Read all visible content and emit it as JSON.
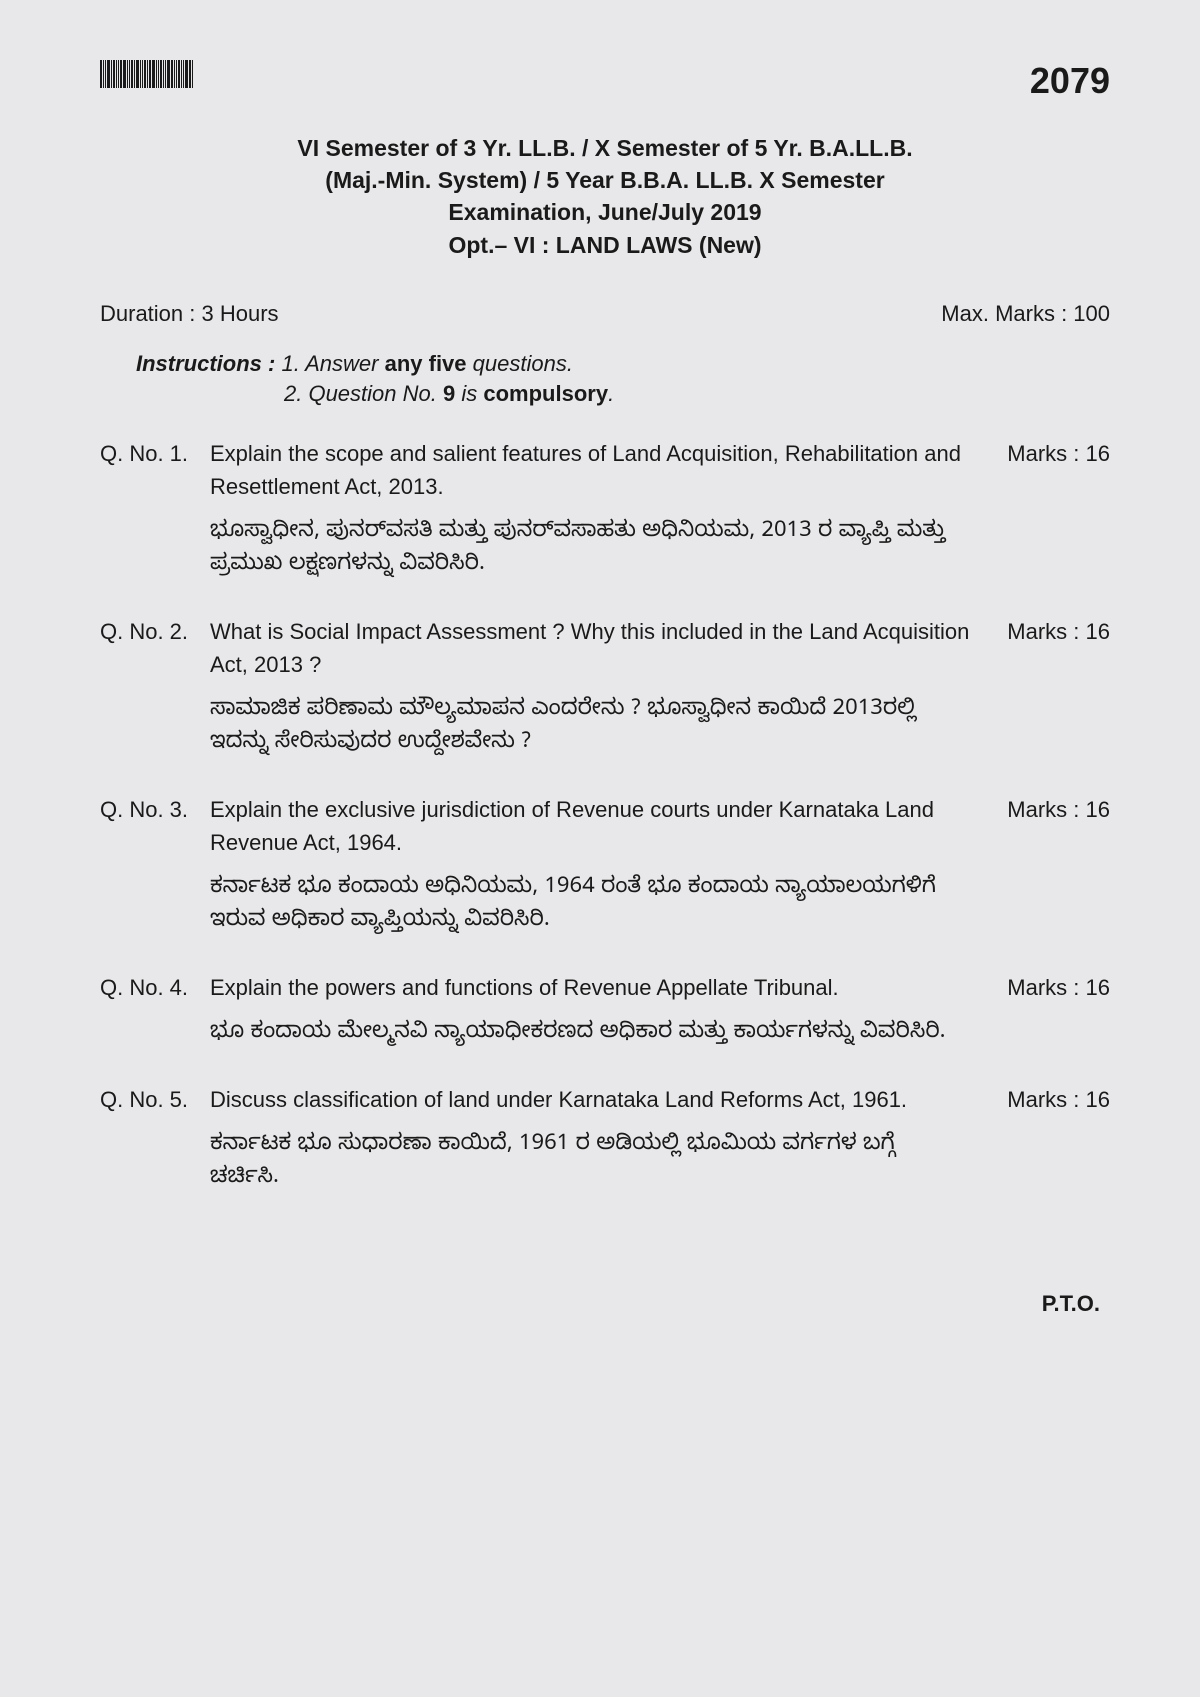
{
  "paper_code": "2079",
  "title": {
    "line1": "VI Semester of 3 Yr. LL.B. / X Semester of 5 Yr. B.A.LL.B.",
    "line2": "(Maj.-Min. System) / 5 Year B.B.A. LL.B. X Semester",
    "line3": "Examination, June/July 2019",
    "line4": "Opt.– VI : LAND LAWS (New)"
  },
  "duration_label": "Duration : 3 Hours",
  "max_marks_label": "Max. Marks : 100",
  "instructions": {
    "label": "Instructions :",
    "line1_prefix": "1. Answer ",
    "line1_bold": "any five",
    "line1_suffix": " questions.",
    "line2_prefix": "2. Question No. ",
    "line2_bold1": "9",
    "line2_mid": " is ",
    "line2_bold2": "compulsory",
    "line2_suffix": "."
  },
  "questions": [
    {
      "num": "Q. No. 1.",
      "en": "Explain the scope and salient features of Land Acquisition, Rehabilitation and Resettlement Act, 2013.",
      "kn": "ಭೂಸ್ವಾಧೀನ, ಪುನರ್‌ವಸತಿ ಮತ್ತು ಪುನರ್‌ವಸಾಹತು ಅಧಿನಿಯಮ, 2013 ರ ವ್ಯಾಪ್ತಿ ಮತ್ತು ಪ್ರಮುಖ ಲಕ್ಷಣಗಳನ್ನು ವಿವರಿಸಿರಿ.",
      "marks": "Marks : 16"
    },
    {
      "num": "Q. No. 2.",
      "en": "What is Social Impact Assessment ? Why this included in the Land Acquisition Act, 2013 ?",
      "kn": "ಸಾಮಾಜಿಕ ಪರಿಣಾಮ ಮೌಲ್ಯಮಾಪನ  ಎಂದರೇನು ? ಭೂಸ್ವಾಧೀನ ಕಾಯಿದೆ 2013ರಲ್ಲಿ ಇದನ್ನು ಸೇರಿಸುವುದರ ಉದ್ದೇಶವೇನು ?",
      "marks": "Marks : 16"
    },
    {
      "num": "Q. No. 3.",
      "en": "Explain  the exclusive jurisdiction of Revenue courts under Karnataka Land Revenue Act, 1964.",
      "kn": "ಕರ್ನಾಟಕ ಭೂ ಕಂದಾಯ ಅಧಿನಿಯಮ, 1964 ರಂತೆ ಭೂ ಕಂದಾಯ ನ್ಯಾಯಾಲಯಗಳಿಗೆ ಇರುವ ಅಧಿಕಾರ ವ್ಯಾಪ್ತಿಯನ್ನು ವಿವರಿಸಿರಿ.",
      "marks": "Marks : 16"
    },
    {
      "num": "Q. No. 4.",
      "en": "Explain the powers and functions of Revenue Appellate Tribunal.",
      "kn": "ಭೂ ಕಂದಾಯ ಮೇಲ್ಮನವಿ ನ್ಯಾಯಾಧೀಕರಣದ ಅಧಿಕಾರ ಮತ್ತು ಕಾರ್ಯಗಳನ್ನು ವಿವರಿಸಿರಿ.",
      "marks": "Marks : 16"
    },
    {
      "num": "Q. No. 5.",
      "en": "Discuss classification of land under Karnataka Land Reforms Act, 1961.",
      "kn": "ಕರ್ನಾಟಕ  ಭೂ ಸುಧಾರಣಾ ಕಾಯಿದೆ, 1961 ರ ಅಡಿಯಲ್ಲಿ ಭೂಮಿಯ ವರ್ಗಗಳ ಬಗ್ಗೆ  ಚರ್ಚಿಸಿ.",
      "marks": "Marks : 16"
    }
  ],
  "pto": "P.T.O.",
  "colors": {
    "background": "#e8e8ea",
    "text": "#2a2a2a",
    "heading": "#1a1a1a"
  },
  "typography": {
    "body_fontsize": 22,
    "title_fontsize": 23,
    "code_fontsize": 36
  }
}
